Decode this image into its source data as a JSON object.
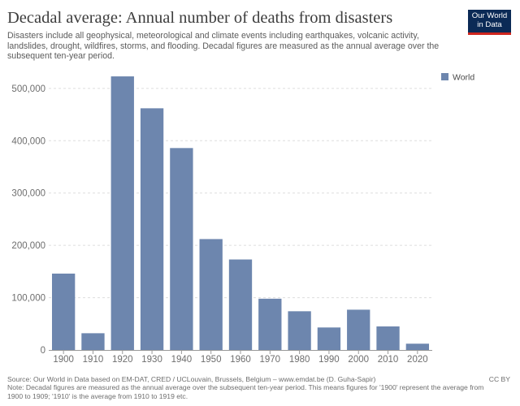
{
  "header": {
    "title": "Decadal average: Annual number of deaths from disasters",
    "subtitle": "Disasters include all geophysical, meteorological and climate events including earthquakes, volcanic activity, landslides, drought, wildfires, storms, and flooding. Decadal figures are measured as the annual average over the subsequent ten-year period.",
    "logo": "Our World in Data"
  },
  "footer": {
    "source": "Source: Our World in Data based on EM-DAT, CRED / UCLouvain, Brussels, Belgium – www.emdat.be (D. Guha-Sapir)",
    "note": "Note: Decadal figures are measured as the annual average over the subsequent ten-year period. This means figures for '1900' represent the average from 1900 to 1909; '1910' is the average from 1910 to 1919 etc.",
    "license": "CC BY"
  },
  "colors": {
    "bar": "#6d86ae",
    "grid": "#dddddd",
    "axis": "#6e6e6e"
  },
  "chart_data": {
    "type": "bar",
    "title": "Decadal average: Annual number of deaths from disasters",
    "xlabel": "",
    "ylabel": "",
    "categories": [
      "1900",
      "1910",
      "1920",
      "1930",
      "1940",
      "1950",
      "1960",
      "1970",
      "1980",
      "1990",
      "2000",
      "2010",
      "2020"
    ],
    "series": [
      {
        "name": "World",
        "values": [
          146000,
          32000,
          523000,
          462000,
          386000,
          212000,
          173000,
          98000,
          74000,
          43000,
          77000,
          45000,
          12000
        ]
      }
    ],
    "ylim": [
      0,
      520000
    ],
    "yticks": [
      0,
      100000,
      200000,
      300000,
      400000,
      500000
    ],
    "ytick_labels": [
      "0",
      "100,000",
      "200,000",
      "300,000",
      "400,000",
      "500,000"
    ],
    "grid": true,
    "legend": "top-right"
  }
}
